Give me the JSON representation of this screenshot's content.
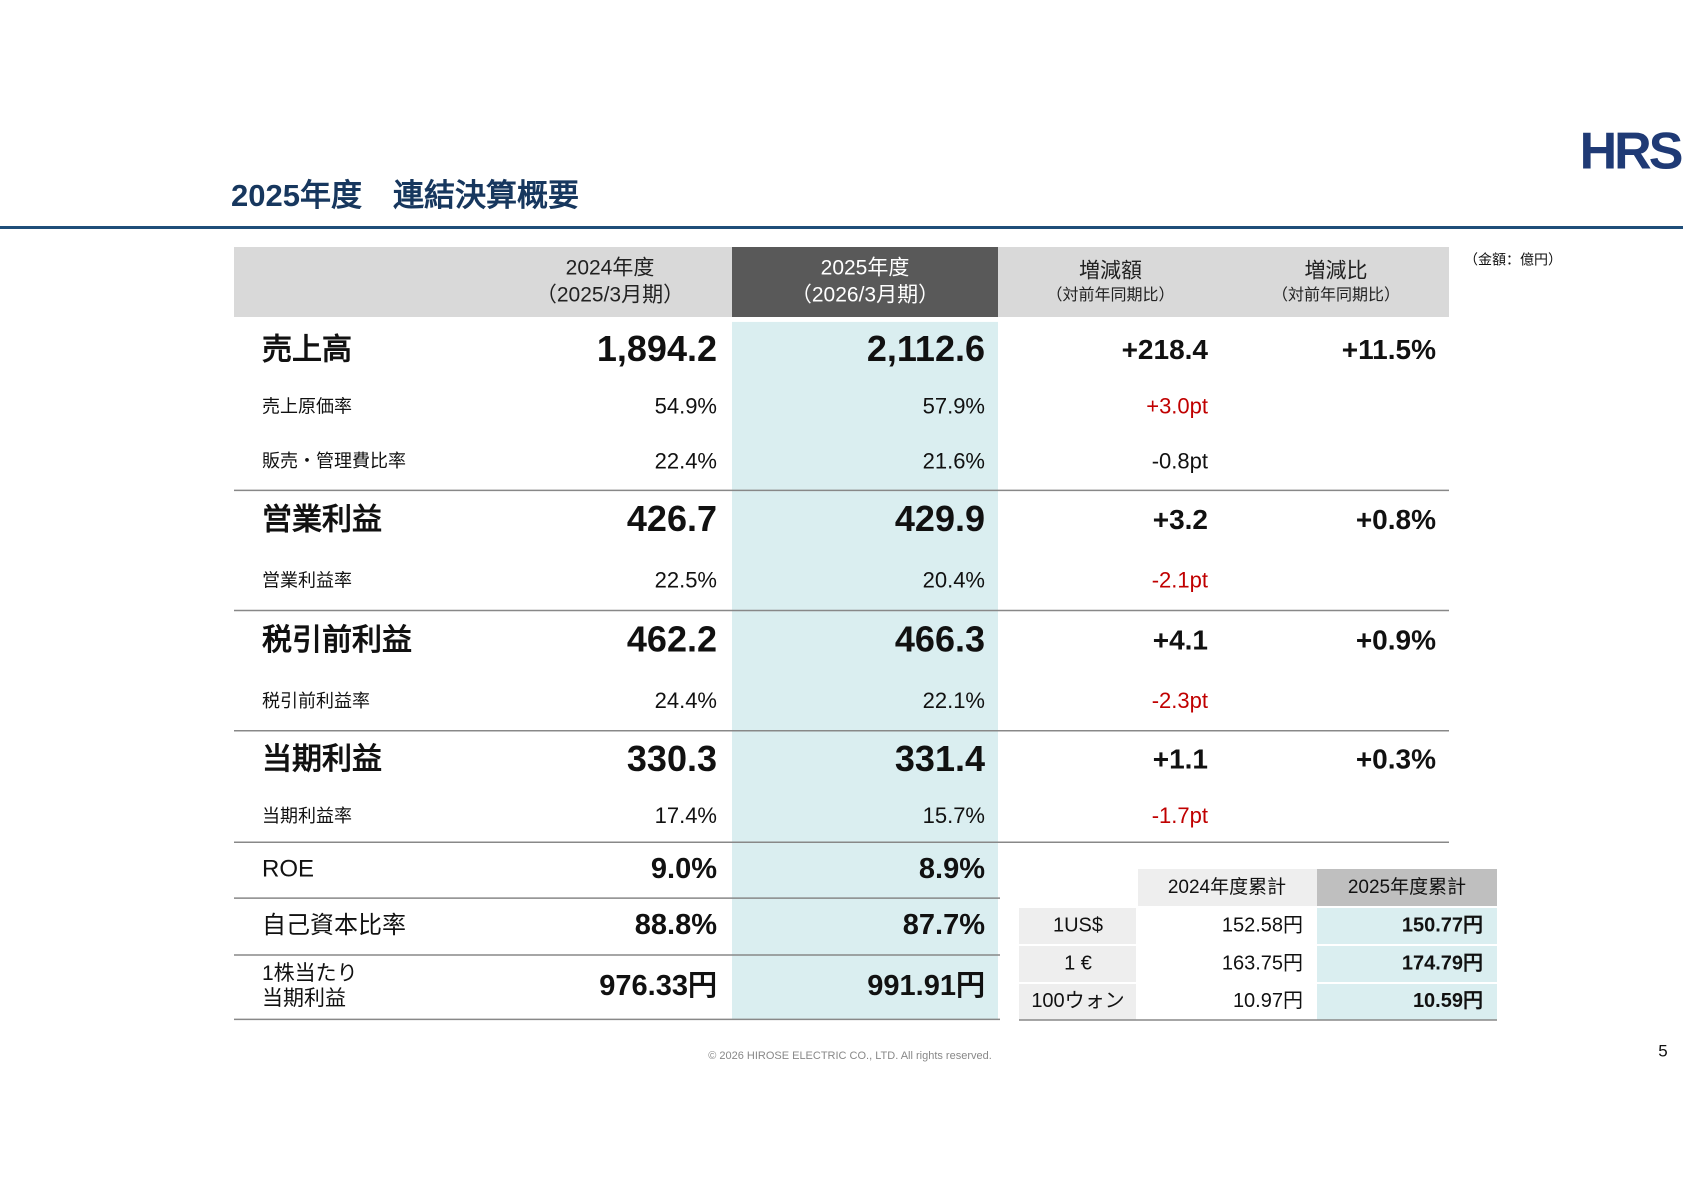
{
  "logo": "HRS",
  "title": "2025年度　連結決算概要",
  "unit": "（金額：億円）",
  "table": {
    "header": [
      {
        "line1": "2024年度",
        "line2": "（2025/3月期）"
      },
      {
        "line1": "2025年度",
        "line2": "（2026/3月期）"
      },
      {
        "line1": "増減額",
        "line2": "（対前年同期比）"
      },
      {
        "line1": "増減比",
        "line2": "（対前年同期比）"
      }
    ],
    "rows": [
      {
        "label": "売上高",
        "fy2024": "1,894.2",
        "fy2025": "2,112.6",
        "diff": "+218.4",
        "ratio": "+11.5%"
      },
      {
        "label": "売上原価率",
        "fy2024": "54.9%",
        "fy2025": "57.9%",
        "diff": "+3.0pt",
        "diff_color": "#c00000"
      },
      {
        "label": "販売・管理費比率",
        "fy2024": "22.4%",
        "fy2025": "21.6%",
        "diff": "-0.8pt"
      },
      {
        "label": "営業利益",
        "fy2024": "426.7",
        "fy2025": "429.9",
        "diff": "+3.2",
        "ratio": "+0.8%"
      },
      {
        "label": "営業利益率",
        "fy2024": "22.5%",
        "fy2025": "20.4%",
        "diff": "-2.1pt",
        "diff_color": "#c00000"
      },
      {
        "label": "税引前利益",
        "fy2024": "462.2",
        "fy2025": "466.3",
        "diff": "+4.1",
        "ratio": "+0.9%"
      },
      {
        "label": "税引前利益率",
        "fy2024": "24.4%",
        "fy2025": "22.1%",
        "diff": "-2.3pt",
        "diff_color": "#c00000"
      },
      {
        "label": "当期利益",
        "fy2024": "330.3",
        "fy2025": "331.4",
        "diff": "+1.1",
        "ratio": "+0.3%"
      },
      {
        "label": "当期利益率",
        "fy2024": "17.4%",
        "fy2025": "15.7%",
        "diff": "-1.7pt",
        "diff_color": "#c00000"
      },
      {
        "label": "ROE",
        "fy2024": "9.0%",
        "fy2025": "8.9%"
      },
      {
        "label": "自己資本比率",
        "fy2024": "88.8%",
        "fy2025": "87.7%"
      },
      {
        "label": [
          "1株当たり",
          "当期利益"
        ],
        "fy2024": "976.33円",
        "fy2025": "991.91円"
      }
    ]
  },
  "fx_table": {
    "header": [
      "2024年度累計",
      "2025年度累計"
    ],
    "rows": [
      [
        "1US$",
        "152.58円",
        "150.77円"
      ],
      [
        "1 €",
        "163.75円",
        "174.79円"
      ],
      [
        "100ウォン",
        "10.97円",
        "10.59円"
      ]
    ]
  },
  "footer": "© 2026 HIROSE ELECTRIC CO., LTD. All rights reserved.",
  "page_number": "5"
}
